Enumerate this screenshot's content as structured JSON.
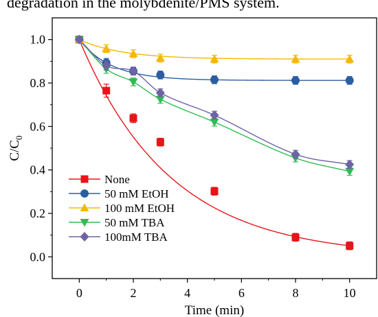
{
  "caption": "degradation in the molybdenite/PMS system.",
  "chart_data": {
    "type": "line",
    "title": "",
    "xlabel": "Time (min)",
    "ylabel_main": "C/C",
    "ylabel_sub": "0",
    "xlim": [
      -1.0,
      11.0
    ],
    "ylim": [
      -0.1,
      1.1
    ],
    "xticks": [
      0,
      2,
      4,
      6,
      8,
      10
    ],
    "yticks": [
      0.0,
      0.2,
      0.4,
      0.6,
      0.8,
      1.0
    ],
    "xtick_labels": [
      "0",
      "2",
      "4",
      "6",
      "8",
      "10"
    ],
    "ytick_labels": [
      "0.0",
      "0.2",
      "0.4",
      "0.6",
      "0.8",
      "1.0"
    ],
    "grid": false,
    "legend_position": "bottom-left",
    "x": [
      0,
      1,
      2,
      3,
      5,
      8,
      10
    ],
    "series": [
      {
        "name": "None",
        "color": "#e8141a",
        "marker": "square",
        "values": [
          1.0,
          0.765,
          0.638,
          0.528,
          0.302,
          0.09,
          0.051
        ],
        "errors": [
          0.01,
          0.03,
          0.02,
          0.018,
          0.018,
          0.018,
          0.018
        ],
        "fit": "exp"
      },
      {
        "name": "50 mM EtOH",
        "color": "#2c5da3",
        "marker": "circle",
        "values": [
          1.0,
          0.893,
          0.855,
          0.837,
          0.815,
          0.812,
          0.812
        ],
        "errors": [
          0.01,
          0.02,
          0.018,
          0.018,
          0.018,
          0.018,
          0.018
        ],
        "fit": "plateau"
      },
      {
        "name": "100 mM EtOH",
        "color": "#f5b800",
        "marker": "triangle-up",
        "values": [
          1.0,
          0.958,
          0.935,
          0.915,
          0.91,
          0.91,
          0.91
        ],
        "errors": [
          0.01,
          0.018,
          0.018,
          0.018,
          0.018,
          0.018,
          0.018
        ],
        "fit": "plateau"
      },
      {
        "name": "50 mM TBA",
        "color": "#2ebc52",
        "marker": "triangle-down",
        "values": [
          1.0,
          0.865,
          0.805,
          0.725,
          0.62,
          0.455,
          0.393
        ],
        "errors": [
          0.01,
          0.02,
          0.018,
          0.018,
          0.018,
          0.018,
          0.018
        ],
        "fit": "smooth"
      },
      {
        "name": "100mM TBA",
        "color": "#6f62a5",
        "marker": "diamond",
        "values": [
          1.0,
          0.88,
          0.855,
          0.755,
          0.652,
          0.472,
          0.425
        ],
        "errors": [
          0.01,
          0.02,
          0.018,
          0.018,
          0.018,
          0.018,
          0.018
        ],
        "fit": "smooth"
      }
    ]
  }
}
